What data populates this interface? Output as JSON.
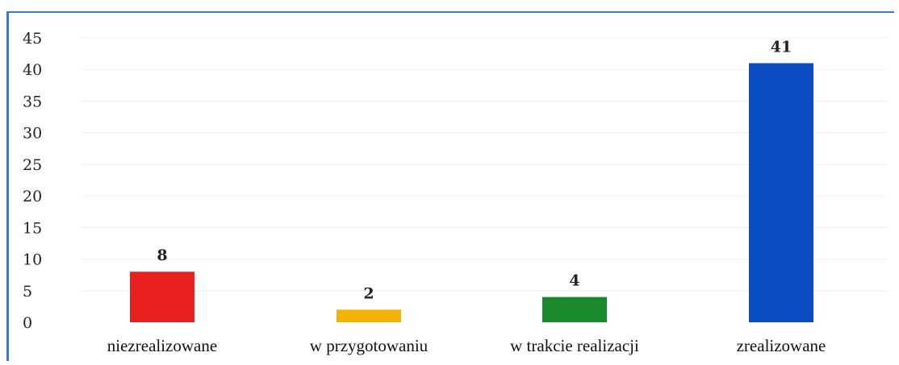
{
  "chart_data": {
    "type": "bar",
    "categories": [
      "niezrealizowane",
      "w przygotowaniu",
      "w trakcie realizacji",
      "zrealizowane"
    ],
    "values": [
      8,
      2,
      4,
      41
    ],
    "colors": [
      "#e8201f",
      "#f5b301",
      "#1b8a2c",
      "#0b4ec4"
    ],
    "ylim": [
      0,
      45
    ],
    "yticks": [
      "0",
      "5",
      "10",
      "15",
      "20",
      "25",
      "30",
      "35",
      "40",
      "45"
    ],
    "data_labels": [
      "8",
      "2",
      "4",
      "41"
    ],
    "grid": false,
    "legend": "none"
  }
}
